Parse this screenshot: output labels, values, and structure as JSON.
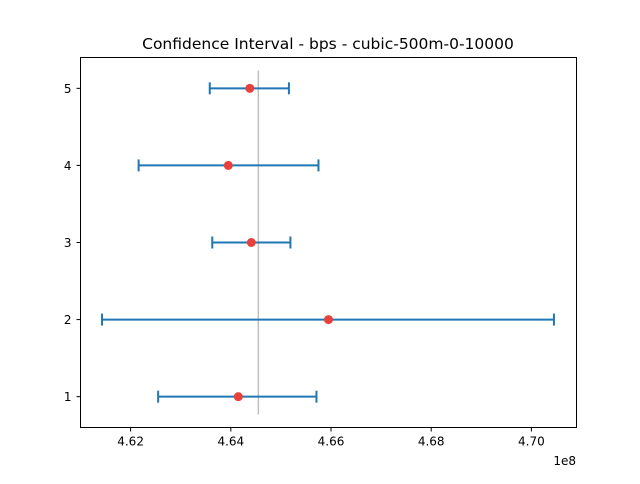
{
  "chart_data": {
    "type": "errorbar",
    "title": "Confidence Interval - bps - cubic-500m-0-10000",
    "xlabel": "",
    "ylabel": "",
    "x_scale_label": "1e8",
    "x_scale": 100000000,
    "xlim": [
      4.61,
      4.709
    ],
    "ylim": [
      0.6,
      5.4
    ],
    "x_ticks": [
      4.62,
      4.64,
      4.66,
      4.68,
      4.7
    ],
    "x_tick_labels": [
      "4.62",
      "4.64",
      "4.66",
      "4.68",
      "4.70"
    ],
    "y_ticks": [
      1,
      2,
      3,
      4,
      5
    ],
    "y_tick_labels": [
      "1",
      "2",
      "3",
      "4",
      "5"
    ],
    "reference_line": {
      "x": 4.6455,
      "color": "#bfbfbf"
    },
    "intervals": [
      {
        "y": 1,
        "mean": 4.6415,
        "lower": 4.6255,
        "upper": 4.6571
      },
      {
        "y": 2,
        "mean": 4.6595,
        "lower": 4.6143,
        "upper": 4.7045
      },
      {
        "y": 3,
        "mean": 4.6441,
        "lower": 4.6363,
        "upper": 4.6519
      },
      {
        "y": 4,
        "mean": 4.6395,
        "lower": 4.6216,
        "upper": 4.6575
      },
      {
        "y": 5,
        "mean": 4.6438,
        "lower": 4.6358,
        "upper": 4.6516
      }
    ],
    "grid": false,
    "legend": "none",
    "colors": {
      "errorbar": "#1f77b4",
      "mean_marker": "#e8403a"
    }
  }
}
